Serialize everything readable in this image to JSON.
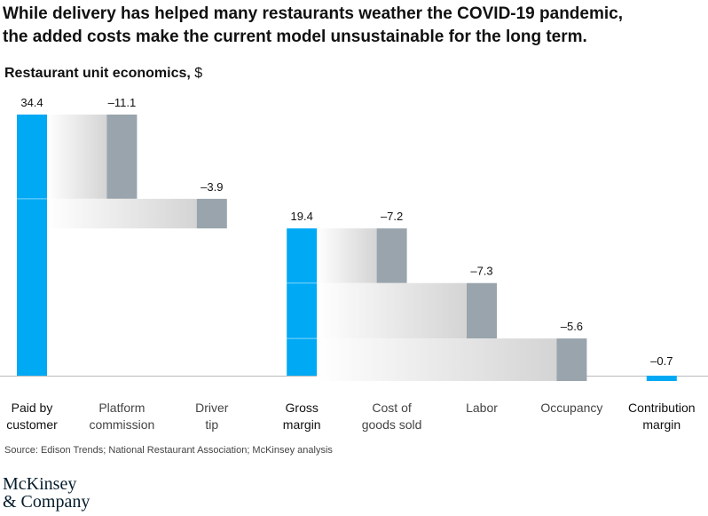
{
  "header": {
    "title_line1": "While delivery has helped many restaurants weather the COVID-19 pandemic,",
    "title_line2": "the added costs make the current model unsustainable for the long term."
  },
  "chart_data": {
    "type": "waterfall",
    "title": "Restaurant unit economics,",
    "unit": "$",
    "ylim": [
      0,
      34.4
    ],
    "categories": [
      "Paid by customer",
      "Platform commission",
      "Driver tip",
      "Gross margin",
      "Cost of goods sold",
      "Labor",
      "Occupancy",
      "Contribution margin"
    ],
    "label_lines": [
      [
        "Paid by",
        "customer"
      ],
      [
        "Platform",
        "commission"
      ],
      [
        "Driver",
        "tip"
      ],
      [
        "Gross",
        "margin"
      ],
      [
        "Cost of",
        "goods sold"
      ],
      [
        "Labor"
      ],
      [
        "Occupancy"
      ],
      [
        "Contribution",
        "margin"
      ]
    ],
    "labels_bold": [
      true,
      false,
      false,
      true,
      false,
      false,
      false,
      true
    ],
    "values": [
      34.4,
      -11.1,
      -3.9,
      19.4,
      -7.2,
      -7.3,
      -5.6,
      -0.7
    ],
    "value_labels": [
      "34.4",
      "–11.1",
      "–3.9",
      "19.4",
      "–7.2",
      "–7.3",
      "–5.6",
      "–0.7"
    ],
    "kinds": [
      "total",
      "delta",
      "delta",
      "total",
      "delta",
      "delta",
      "delta",
      "total"
    ],
    "colors": {
      "total": "#00a9f4",
      "delta": "#99a4ac",
      "axis": "#bbbbbb",
      "fade": "#d4d4d4"
    }
  },
  "footer": {
    "source": "Source: Edison Trends; National Restaurant Association; McKinsey analysis",
    "logo_line1": "McKinsey",
    "logo_line2": "& Company"
  }
}
